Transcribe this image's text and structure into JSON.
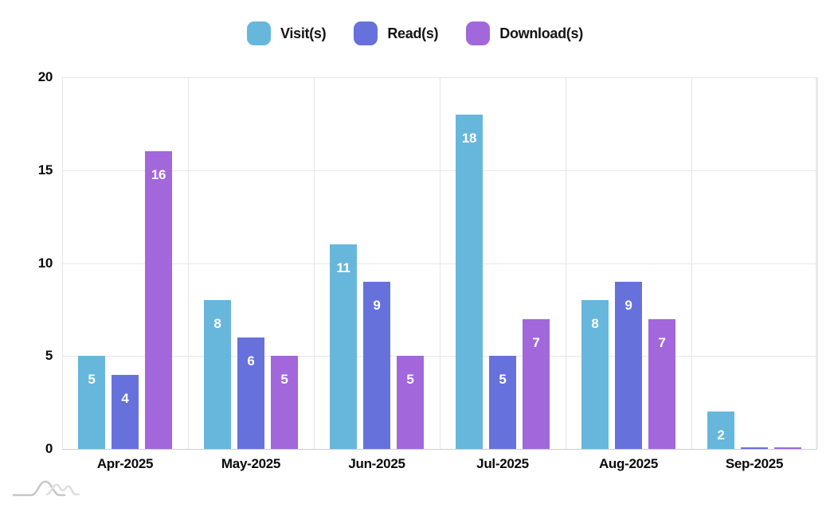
{
  "legend": {
    "position": "top",
    "items": [
      {
        "label": "Visit(s)",
        "color": "#67b7dc"
      },
      {
        "label": "Read(s)",
        "color": "#6771dc"
      },
      {
        "label": "Download(s)",
        "color": "#a367dc"
      }
    ]
  },
  "chart_data": {
    "type": "bar",
    "title": "",
    "categories": [
      "Apr-2025",
      "May-2025",
      "Jun-2025",
      "Jul-2025",
      "Aug-2025",
      "Sep-2025"
    ],
    "series": [
      {
        "name": "Visit(s)",
        "color": "#67b7dc",
        "values": [
          5,
          8,
          11,
          18,
          8,
          2
        ]
      },
      {
        "name": "Read(s)",
        "color": "#6771dc",
        "values": [
          4,
          6,
          9,
          5,
          9,
          0
        ]
      },
      {
        "name": "Download(s)",
        "color": "#a367dc",
        "values": [
          16,
          5,
          5,
          7,
          7,
          0
        ]
      }
    ],
    "xlabel": "",
    "ylabel": "",
    "ylim": [
      0,
      20
    ],
    "y_ticks": [
      0,
      5,
      10,
      15,
      20
    ],
    "grid": true,
    "legend_position": "top",
    "value_labels": "inside-top-white",
    "colors": {
      "grid_line": "#e6e6e6",
      "plot_right_edge": "#e9e9e9",
      "axis_line": "#cfcfcf",
      "tick_label": "#0a0a0a",
      "value_label": "#ffffff"
    }
  },
  "branding": {
    "logo": "amcharts-watermark"
  }
}
